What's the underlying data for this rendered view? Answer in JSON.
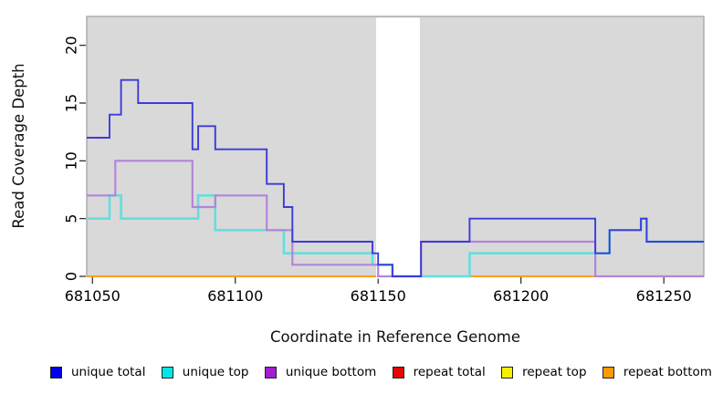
{
  "chart_data": {
    "type": "line",
    "subtype": "step-coverage",
    "title": "",
    "xlabel": "Coordinate in Reference Genome",
    "ylabel": "Read Coverage Depth",
    "xlim": [
      681048,
      681264
    ],
    "ylim": [
      0,
      22.5
    ],
    "x_ticks": [
      681050,
      681100,
      681150,
      681200,
      681250
    ],
    "y_ticks": [
      0,
      5,
      10,
      15,
      20
    ],
    "grid": false,
    "legend_position": "bottom",
    "panel_bg": "#d9d9d9",
    "panel_border": "#9e9e9e",
    "tick_color": "#222222",
    "gap_band": {
      "x_start": 681149.3,
      "x_end": 681164.6,
      "color": "#ffffff"
    },
    "series": [
      {
        "name": "repeat total",
        "group": "repeat",
        "line_color": "#d42a2a",
        "width": 2,
        "points": [
          [
            681048,
            0
          ]
        ]
      },
      {
        "name": "repeat top",
        "group": "repeat",
        "line_color": "#e8e832",
        "width": 2,
        "points": [
          [
            681048,
            0
          ]
        ]
      },
      {
        "name": "repeat bottom",
        "group": "repeat",
        "line_color": "#ff9d1e",
        "width": 2,
        "points": [
          [
            681048,
            0
          ]
        ]
      },
      {
        "name": "unique top",
        "group": "unique",
        "line_color": "#63dede",
        "width": 2.6,
        "points": [
          [
            681048,
            5
          ],
          [
            681056,
            7
          ],
          [
            681060,
            5
          ],
          [
            681087,
            7
          ],
          [
            681093,
            4
          ],
          [
            681117,
            2
          ],
          [
            681148,
            1
          ],
          [
            681155,
            0
          ],
          [
            681182,
            2
          ],
          [
            681231,
            4
          ],
          [
            681242,
            5
          ],
          [
            681244,
            3
          ]
        ]
      },
      {
        "name": "unique bottom",
        "group": "unique",
        "line_color": "#b285d9",
        "width": 2.2,
        "points": [
          [
            681048,
            7
          ],
          [
            681058,
            10
          ],
          [
            681085,
            6
          ],
          [
            681093,
            7
          ],
          [
            681111,
            4
          ],
          [
            681120,
            1
          ],
          [
            681150,
            0
          ],
          [
            681165,
            3
          ],
          [
            681226,
            0
          ]
        ]
      },
      {
        "name": "unique total",
        "group": "unique",
        "line_color": "#3b3bd9",
        "width": 1.9,
        "points": [
          [
            681048,
            12
          ],
          [
            681056,
            14
          ],
          [
            681060,
            17
          ],
          [
            681066,
            15
          ],
          [
            681085,
            11
          ],
          [
            681087,
            13
          ],
          [
            681093,
            11
          ],
          [
            681111,
            8
          ],
          [
            681117,
            6
          ],
          [
            681120,
            3
          ],
          [
            681148,
            2
          ],
          [
            681150,
            1
          ],
          [
            681155,
            0
          ],
          [
            681165,
            3
          ],
          [
            681182,
            5
          ],
          [
            681226,
            2
          ],
          [
            681231,
            4
          ],
          [
            681242,
            5
          ],
          [
            681244,
            3
          ]
        ]
      }
    ],
    "legend": [
      {
        "label": "unique total",
        "color": "#0000ee"
      },
      {
        "label": "unique top",
        "color": "#00e6e6"
      },
      {
        "label": "unique bottom",
        "color": "#a11fd1"
      },
      {
        "label": "repeat total",
        "color": "#ee0000"
      },
      {
        "label": "repeat top",
        "color": "#f2f200"
      },
      {
        "label": "repeat bottom",
        "color": "#ff9900"
      }
    ]
  }
}
